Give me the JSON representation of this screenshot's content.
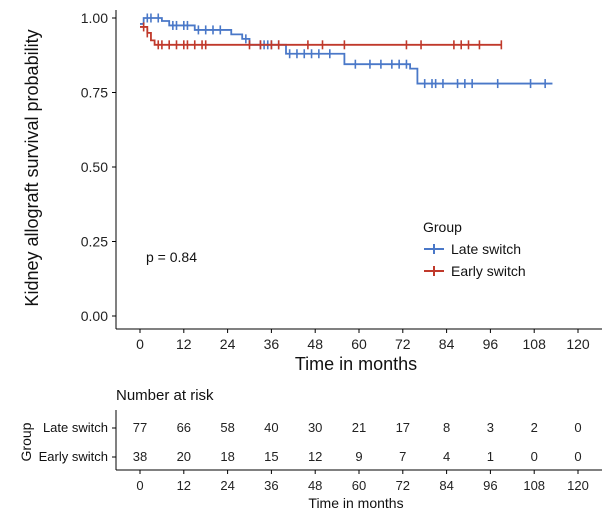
{
  "chart_data": {
    "type": "line",
    "subtype": "kaplan-meier",
    "xlabel": "Time in months",
    "ylabel": "Kidney allograft survival probability",
    "xlim": [
      0,
      120
    ],
    "ylim": [
      0,
      1
    ],
    "x_ticks": [
      "0",
      "12",
      "24",
      "36",
      "48",
      "60",
      "72",
      "84",
      "96",
      "108",
      "120"
    ],
    "y_ticks": [
      "0.00",
      "0.25",
      "0.50",
      "0.75",
      "1.00"
    ],
    "grid": false,
    "annotation": "p = 0.84",
    "legend": {
      "title": "Group",
      "position": "center-right",
      "items": [
        "Late switch",
        "Early switch"
      ]
    },
    "series": [
      {
        "name": "Late switch",
        "color": "#4a78c8",
        "steps": [
          [
            0,
            0.98
          ],
          [
            1,
            1.0
          ],
          [
            6,
            0.99
          ],
          [
            8,
            0.975
          ],
          [
            15,
            0.96
          ],
          [
            25,
            0.945
          ],
          [
            28,
            0.93
          ],
          [
            30,
            0.91
          ],
          [
            40,
            0.88
          ],
          [
            56,
            0.845
          ],
          [
            74,
            0.83
          ],
          [
            76,
            0.78
          ],
          [
            113,
            0.78
          ]
        ],
        "censored": [
          [
            2,
            1.0
          ],
          [
            3,
            1.0
          ],
          [
            5,
            1.0
          ],
          [
            9,
            0.975
          ],
          [
            10,
            0.975
          ],
          [
            12,
            0.975
          ],
          [
            13,
            0.975
          ],
          [
            16,
            0.96
          ],
          [
            18,
            0.96
          ],
          [
            20,
            0.96
          ],
          [
            22,
            0.96
          ],
          [
            29,
            0.93
          ],
          [
            33,
            0.91
          ],
          [
            34,
            0.91
          ],
          [
            35,
            0.91
          ],
          [
            36,
            0.91
          ],
          [
            38,
            0.91
          ],
          [
            41,
            0.88
          ],
          [
            43,
            0.88
          ],
          [
            45,
            0.88
          ],
          [
            47,
            0.88
          ],
          [
            49,
            0.88
          ],
          [
            52,
            0.88
          ],
          [
            59,
            0.845
          ],
          [
            63,
            0.845
          ],
          [
            66,
            0.845
          ],
          [
            69,
            0.845
          ],
          [
            71,
            0.845
          ],
          [
            73,
            0.845
          ],
          [
            78,
            0.78
          ],
          [
            80,
            0.78
          ],
          [
            81,
            0.78
          ],
          [
            83,
            0.78
          ],
          [
            87,
            0.78
          ],
          [
            89,
            0.78
          ],
          [
            91,
            0.78
          ],
          [
            98,
            0.78
          ],
          [
            107,
            0.78
          ],
          [
            111,
            0.78
          ]
        ]
      },
      {
        "name": "Early switch",
        "color": "#c0392b",
        "steps": [
          [
            0,
            0.97
          ],
          [
            2,
            0.95
          ],
          [
            3,
            0.925
          ],
          [
            4,
            0.91
          ],
          [
            99,
            0.91
          ]
        ],
        "censored": [
          [
            1,
            0.97
          ],
          [
            2,
            0.95
          ],
          [
            5,
            0.91
          ],
          [
            6,
            0.91
          ],
          [
            8,
            0.91
          ],
          [
            10,
            0.91
          ],
          [
            12,
            0.91
          ],
          [
            13,
            0.91
          ],
          [
            15,
            0.91
          ],
          [
            17,
            0.91
          ],
          [
            18,
            0.91
          ],
          [
            30,
            0.91
          ],
          [
            33,
            0.91
          ],
          [
            36,
            0.91
          ],
          [
            38,
            0.91
          ],
          [
            46,
            0.91
          ],
          [
            50,
            0.91
          ],
          [
            56,
            0.91
          ],
          [
            73,
            0.91
          ],
          [
            77,
            0.91
          ],
          [
            86,
            0.91
          ],
          [
            88,
            0.91
          ],
          [
            90,
            0.91
          ],
          [
            93,
            0.91
          ],
          [
            99,
            0.91
          ]
        ]
      }
    ]
  },
  "risk_table": {
    "title": "Number at risk",
    "group_label": "Group",
    "xlabel": "Time in months",
    "x_ticks": [
      "0",
      "12",
      "24",
      "36",
      "48",
      "60",
      "72",
      "84",
      "96",
      "108",
      "120"
    ],
    "rows": [
      {
        "label": "Late switch",
        "color": "#4a78c8",
        "values": [
          "77",
          "66",
          "58",
          "40",
          "30",
          "21",
          "17",
          "8",
          "3",
          "2",
          "0"
        ]
      },
      {
        "label": "Early switch",
        "color": "#c0392b",
        "values": [
          "38",
          "20",
          "18",
          "15",
          "12",
          "9",
          "7",
          "4",
          "1",
          "0",
          "0"
        ]
      }
    ]
  }
}
